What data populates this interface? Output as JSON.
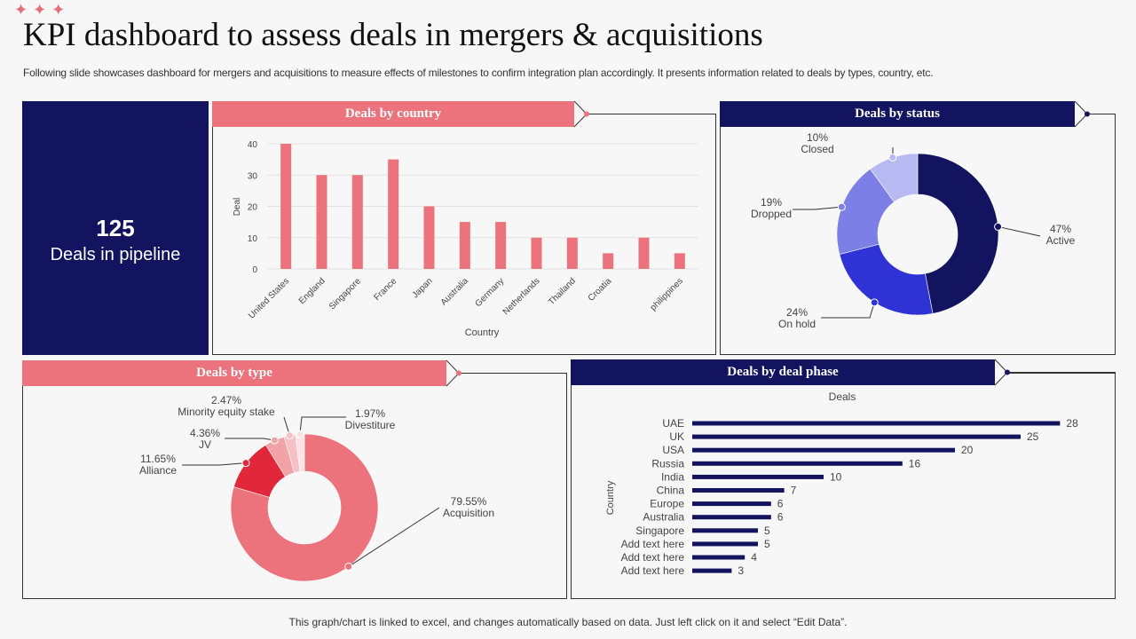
{
  "header": {
    "title": "KPI dashboard to assess deals in mergers & acquisitions",
    "subtitle": "Following slide showcases dashboard for mergers and acquisitions to measure effects of milestones to confirm integration plan accordingly. It presents information related to deals by types, country, etc."
  },
  "kpi": {
    "value": "125",
    "label": "Deals in pipeline"
  },
  "colors": {
    "navy": "#13145f",
    "pink": "#ec737b",
    "red": "#e0283a",
    "blue": "#2f33d6",
    "periwinkle": "#7c7fe6",
    "lavender": "#b7b9f2"
  },
  "chart_data": [
    {
      "type": "bar",
      "title": "Deals by country",
      "xlabel": "Country",
      "ylabel": "Deal",
      "ylim": [
        0,
        40
      ],
      "yticks": [
        0,
        10,
        20,
        30,
        40
      ],
      "categories": [
        "United States",
        "England",
        "Singapore",
        "France",
        "Japan",
        "Australia",
        "Germany",
        "Netherlands",
        "Thailand",
        "Croatia",
        "",
        "philippines"
      ],
      "values": [
        40,
        30,
        30,
        35,
        20,
        15,
        15,
        10,
        10,
        5,
        10,
        5
      ],
      "grid": true
    },
    {
      "type": "pie",
      "title": "Deals by status",
      "labels": [
        "Active",
        "On hold",
        "Dropped",
        "Closed"
      ],
      "values": [
        47,
        24,
        19,
        10
      ],
      "display": [
        "47%",
        "24%",
        "19%",
        "10%"
      ]
    },
    {
      "type": "pie",
      "title": "Deals by type",
      "labels": [
        "Acquisition",
        "Alliance",
        "JV",
        "Minority equity stake",
        "Divestiture"
      ],
      "values": [
        79.55,
        11.65,
        4.36,
        2.47,
        1.97
      ],
      "display": [
        "79.55%",
        "11.65%",
        "4.36%",
        "2.47%",
        "1.97%"
      ]
    },
    {
      "type": "bar",
      "orientation": "horizontal",
      "title": "Deals by deal phase",
      "series_title": "Deals",
      "ylabel": "Country",
      "categories": [
        "UAE",
        "UK",
        "USA",
        "Russia",
        "India",
        "China",
        "Europe",
        "Australia",
        "Singapore",
        "Add text here",
        "Add text here",
        "Add text here"
      ],
      "values": [
        28,
        25,
        20,
        16,
        10,
        7,
        6,
        6,
        5,
        5,
        4,
        3
      ]
    }
  ],
  "footer": "This graph/chart is linked to excel, and changes automatically based on data. Just left click on it and select “Edit Data”."
}
